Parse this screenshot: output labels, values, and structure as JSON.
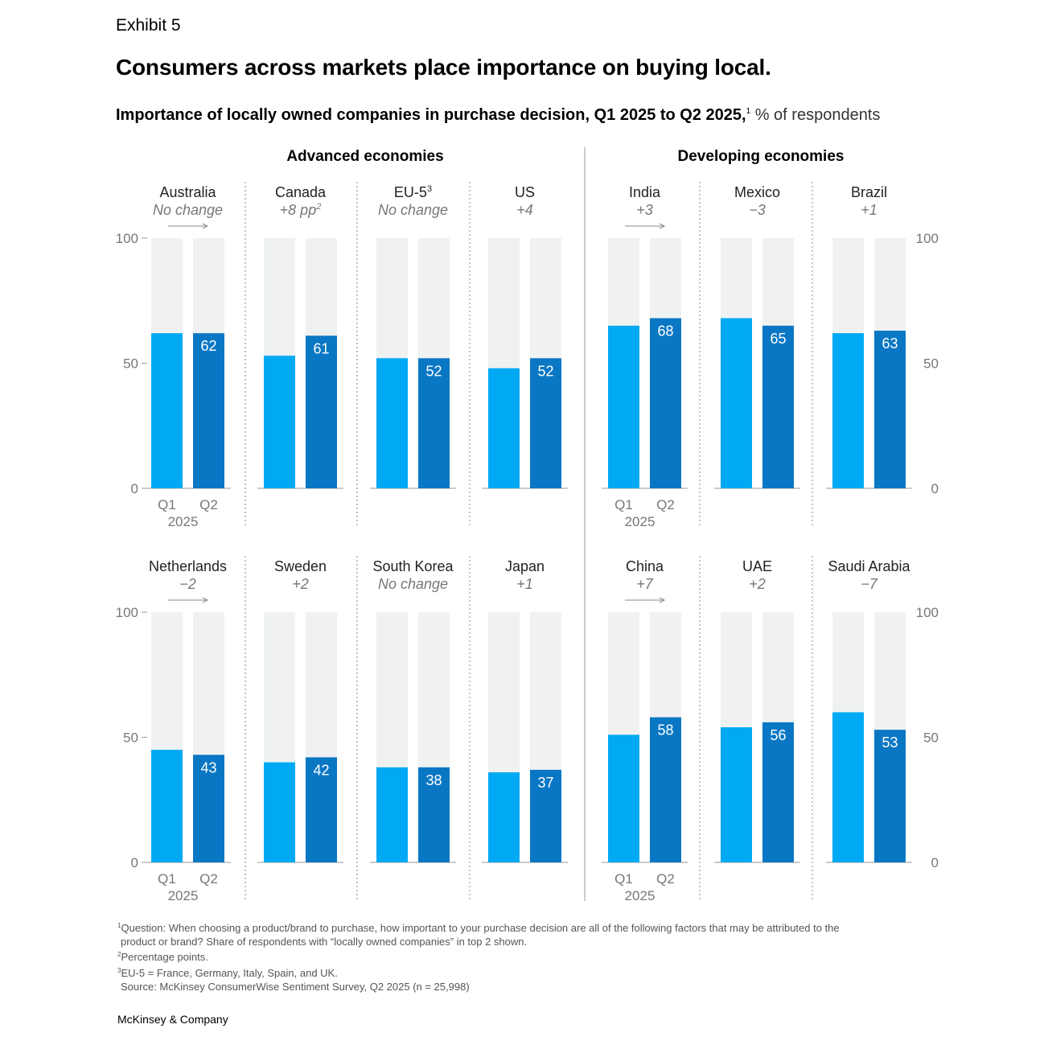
{
  "header": {
    "exhibit": "Exhibit 5",
    "title": "Consumers across markets place importance on buying local.",
    "subtitle_bold": "Importance of locally owned companies in purchase decision, Q1 2025 to Q2 2025,",
    "subtitle_sup": "1",
    "subtitle_rest": " % of respondents"
  },
  "chart_data": {
    "type": "bar",
    "groups": [
      "Advanced economies",
      "Developing economies"
    ],
    "ylim": [
      0,
      100
    ],
    "yticks": [
      0,
      50,
      100
    ],
    "categories": [
      "Q1",
      "Q2"
    ],
    "year_label": "2025",
    "colors": {
      "q1": "#00A9F4",
      "q2": "#0A77C4",
      "background": "#F0F2F2",
      "divider": "#999999"
    },
    "panels": [
      {
        "name": "Australia",
        "sup": "",
        "change": "No change",
        "change_sup": "",
        "group": "Advanced economies",
        "q1": 62,
        "q2": 62
      },
      {
        "name": "Canada",
        "sup": "",
        "change": "+8 pp",
        "change_sup": "2",
        "group": "Advanced economies",
        "q1": 53,
        "q2": 61
      },
      {
        "name": "EU-5",
        "sup": "3",
        "change": "No change",
        "change_sup": "",
        "group": "Advanced economies",
        "q1": 52,
        "q2": 52
      },
      {
        "name": "US",
        "sup": "",
        "change": "+4",
        "change_sup": "",
        "group": "Advanced economies",
        "q1": 48,
        "q2": 52
      },
      {
        "name": "India",
        "sup": "",
        "change": "+3",
        "change_sup": "",
        "group": "Developing economies",
        "q1": 65,
        "q2": 68
      },
      {
        "name": "Mexico",
        "sup": "",
        "change": "−3",
        "change_sup": "",
        "group": "Developing economies",
        "q1": 68,
        "q2": 65
      },
      {
        "name": "Brazil",
        "sup": "",
        "change": "+1",
        "change_sup": "",
        "group": "Developing economies",
        "q1": 62,
        "q2": 63
      },
      {
        "name": "Netherlands",
        "sup": "",
        "change": "−2",
        "change_sup": "",
        "group": "Advanced economies",
        "q1": 45,
        "q2": 43
      },
      {
        "name": "Sweden",
        "sup": "",
        "change": "+2",
        "change_sup": "",
        "group": "Advanced economies",
        "q1": 40,
        "q2": 42
      },
      {
        "name": "South Korea",
        "sup": "",
        "change": "No change",
        "change_sup": "",
        "group": "Advanced economies",
        "q1": 38,
        "q2": 38
      },
      {
        "name": "Japan",
        "sup": "",
        "change": "+1",
        "change_sup": "",
        "group": "Advanced economies",
        "q1": 36,
        "q2": 37
      },
      {
        "name": "China",
        "sup": "",
        "change": "+7",
        "change_sup": "",
        "group": "Developing economies",
        "q1": 51,
        "q2": 58
      },
      {
        "name": "UAE",
        "sup": "",
        "change": "+2",
        "change_sup": "",
        "group": "Developing economies",
        "q1": 54,
        "q2": 56
      },
      {
        "name": "Saudi Arabia",
        "sup": "",
        "change": "−7",
        "change_sup": "",
        "group": "Developing economies",
        "q1": 60,
        "q2": 53
      }
    ]
  },
  "footnotes": [
    {
      "sup": "1",
      "text": "Question: When choosing a product/brand to purchase, how important to your purchase decision are all of the following factors that may be attributed to the"
    },
    {
      "sup": "",
      "text": "product or brand? Share of respondents with “locally owned companies” in top 2 shown."
    },
    {
      "sup": "2",
      "text": "Percentage points."
    },
    {
      "sup": "3",
      "text": "EU-5 = France, Germany, Italy, Spain, and UK."
    },
    {
      "sup": "",
      "text": "Source: McKinsey ConsumerWise Sentiment Survey, Q2 2025 (n = 25,998)"
    }
  ],
  "brand": "McKinsey & Company"
}
